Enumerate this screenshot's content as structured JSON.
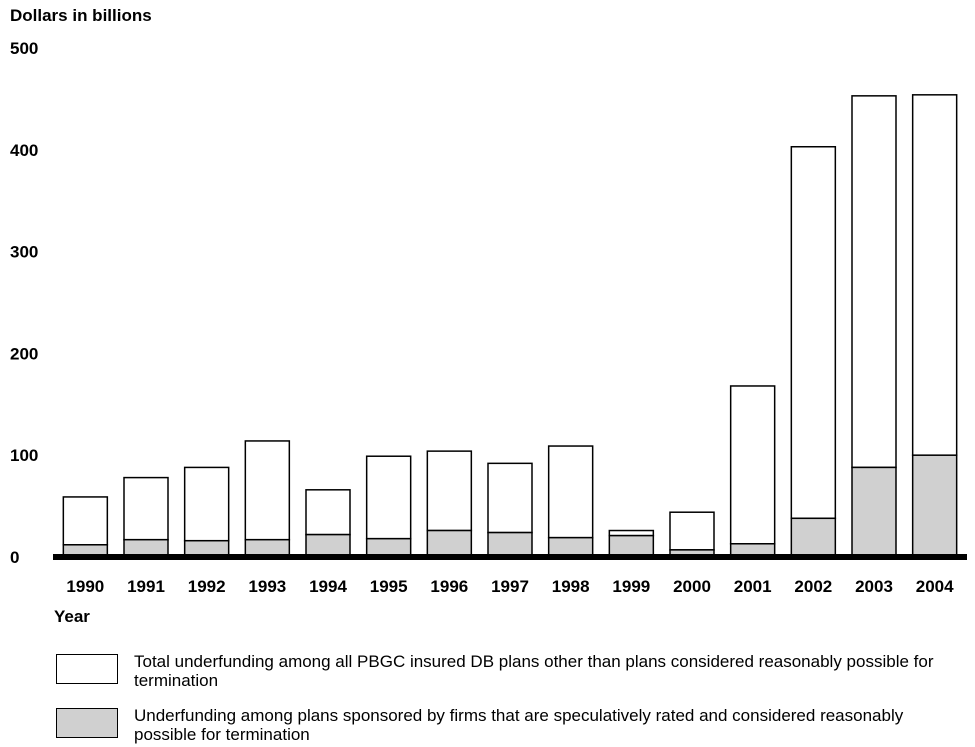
{
  "chart_data": {
    "type": "bar",
    "stacked": true,
    "ylabel": "Dollars in billions",
    "xlabel": "Year",
    "ylim": [
      0,
      500
    ],
    "yticks": [
      0,
      100,
      200,
      300,
      400,
      500
    ],
    "grid": false,
    "legend_position": "bottom",
    "categories": [
      "1990",
      "1991",
      "1992",
      "1993",
      "1994",
      "1995",
      "1996",
      "1997",
      "1998",
      "1999",
      "2000",
      "2001",
      "2002",
      "2003",
      "2004"
    ],
    "series": [
      {
        "name": "Underfunding among plans sponsored by firms that are speculatively rated and considered reasonably possible for termination",
        "color": "#d0d0d0",
        "values": [
          12,
          17,
          16,
          17,
          22,
          18,
          26,
          24,
          19,
          21,
          7,
          13,
          38,
          88,
          100
        ]
      },
      {
        "name": "Total underfunding among all PBGC insured DB plans other than plans considered reasonably possible for termination",
        "color": "#ffffff",
        "values": [
          47,
          61,
          72,
          97,
          44,
          81,
          78,
          68,
          90,
          5,
          37,
          155,
          365,
          365,
          354
        ]
      }
    ]
  }
}
